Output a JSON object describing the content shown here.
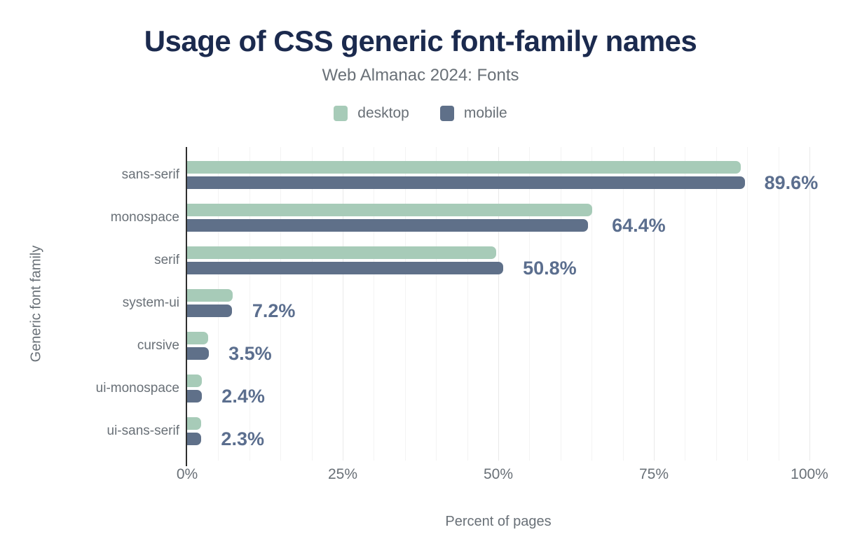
{
  "colors": {
    "background": "#ffffff",
    "title": "#1b2a4e",
    "muted_text": "#697077",
    "desktop_bar": "#a7cbb8",
    "mobile_bar": "#5f7089",
    "value_label": "#5b6e8e",
    "axis_line": "#2e2e2e",
    "grid_minor": "#f3f3f3",
    "grid_major": "#e9e9e9"
  },
  "chart_data": {
    "type": "bar",
    "orientation": "horizontal",
    "title": "Usage of CSS generic font-family names",
    "subtitle": "Web Almanac 2024: Fonts",
    "xlabel": "Percent of pages",
    "ylabel": "Generic font family",
    "xlim": [
      0,
      100
    ],
    "x_ticks": [
      "0%",
      "25%",
      "50%",
      "75%",
      "100%"
    ],
    "x_tick_values": [
      0,
      25,
      50,
      75,
      100
    ],
    "grid": "vertical minor gridlines every 5%, no horizontal gridlines",
    "legend_position": "top center",
    "categories": [
      "sans-serif",
      "monospace",
      "serif",
      "system-ui",
      "cursive",
      "ui-monospace",
      "ui-sans-serif"
    ],
    "series": [
      {
        "name": "desktop",
        "color": "#a7cbb8",
        "values": [
          89.0,
          65.1,
          49.7,
          7.3,
          3.4,
          2.4,
          2.3
        ]
      },
      {
        "name": "mobile",
        "color": "#5f7089",
        "values": [
          89.6,
          64.4,
          50.8,
          7.2,
          3.5,
          2.4,
          2.3
        ]
      }
    ],
    "value_labels": [
      "89.6%",
      "64.4%",
      "50.8%",
      "7.2%",
      "3.5%",
      "2.4%",
      "2.3%"
    ],
    "value_labels_source": "mobile"
  }
}
